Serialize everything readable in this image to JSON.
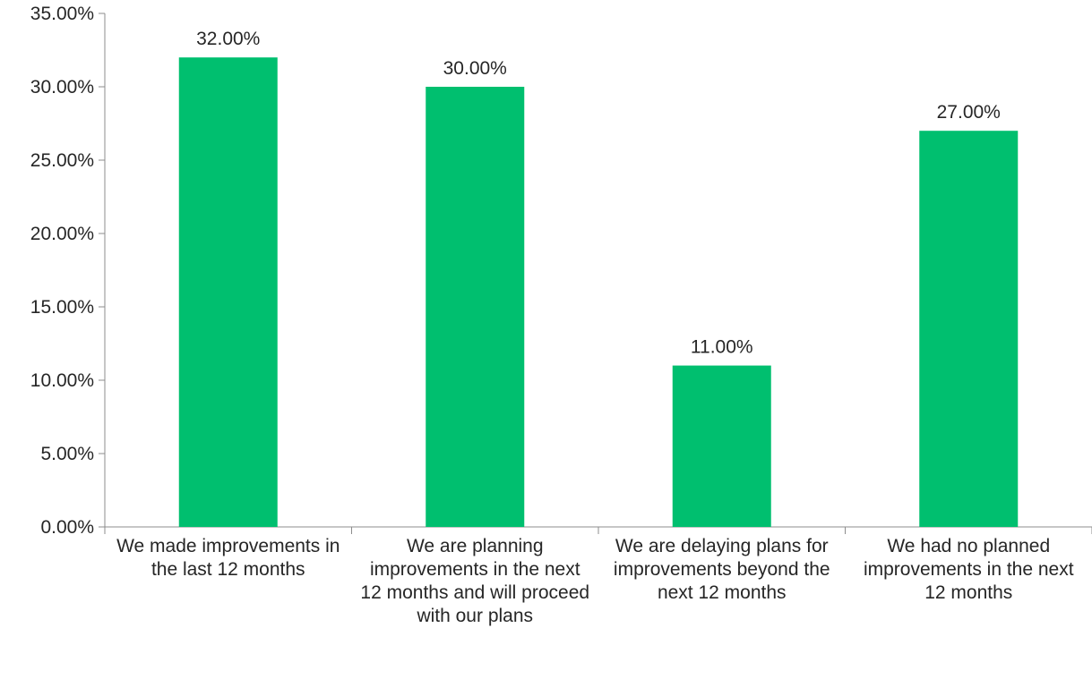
{
  "chart_data": {
    "type": "bar",
    "title": "",
    "xlabel": "",
    "ylabel": "",
    "categories": [
      "We made improvements in the last 12 months",
      "We are planning improvements in the next 12 months and will proceed with our plans",
      "We are delaying plans for improvements beyond the next 12 months",
      "We had no planned improvements in the next 12 months"
    ],
    "values": [
      32.0,
      30.0,
      11.0,
      27.0
    ],
    "value_labels": [
      "32.00%",
      "30.00%",
      "11.00%",
      "27.00%"
    ],
    "ylim": [
      0,
      35
    ],
    "y_ticks": [
      0,
      5,
      10,
      15,
      20,
      25,
      30,
      35
    ],
    "y_tick_labels": [
      "0.00%",
      "5.00%",
      "10.00%",
      "15.00%",
      "20.00%",
      "25.00%",
      "30.00%",
      "35.00%"
    ],
    "grid": false,
    "legend": "none",
    "colors": {
      "bar": "#00BF6F",
      "axis": "#8c8c8c",
      "text": "#262626"
    }
  }
}
